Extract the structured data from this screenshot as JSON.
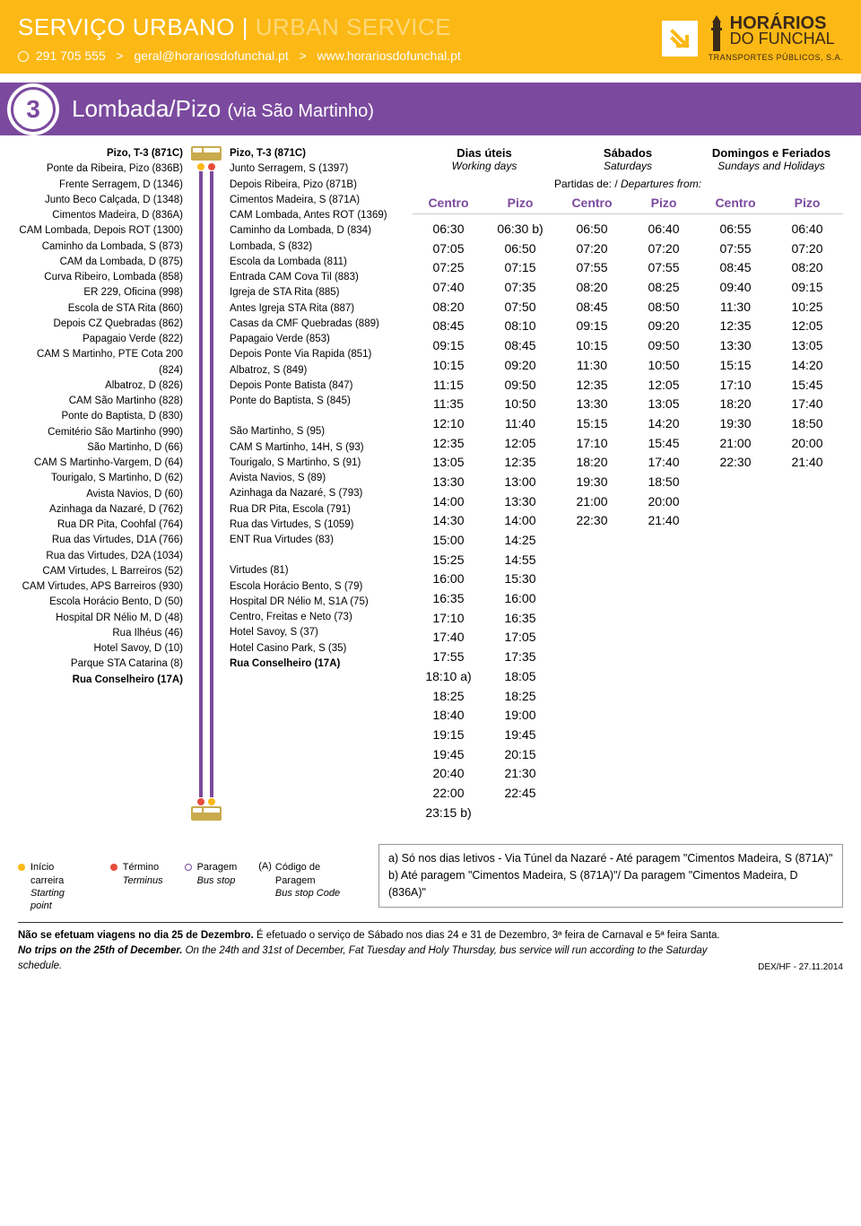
{
  "header": {
    "service_bold": "SERVIÇO URBANO",
    "service_light": "URBAN SERVICE",
    "phone": "291 705 555",
    "email": "geral@horariosdofunchal.pt",
    "url": "www.horariosdofunchal.pt",
    "logo_line1": "HORÁRIOS",
    "logo_line2": "DO FUNCHAL",
    "logo_tag": "TRANSPORTES PÚBLICOS, S.A."
  },
  "route": {
    "number": "3",
    "name": "Lombada/Pizo",
    "via": "(via São Martinho)"
  },
  "stops_left": [
    "Pizo, T-3 (871C)",
    "Ponte da Ribeira, Pizo (836B)",
    "Frente Serragem, D (1346)",
    "Junto Beco Calçada, D (1348)",
    "Cimentos Madeira, D (836A)",
    "CAM Lombada, Depois ROT (1300)",
    "Caminho da Lombada, S (873)",
    "CAM da Lombada, D (875)",
    "Curva Ribeiro, Lombada (858)",
    "ER 229, Oficina (998)",
    "Escola de STA Rita (860)",
    "Depois CZ Quebradas (862)",
    "Papagaio Verde (822)",
    "CAM S Martinho, PTE Cota 200 (824)",
    "Albatroz, D (826)",
    "CAM São Martinho (828)",
    "Ponte do Baptista, D (830)",
    "Cemitério São Martinho (990)",
    "São Martinho, D (66)",
    "CAM S Martinho-Vargem, D (64)",
    "Tourigalo, S Martinho, D (62)",
    "Avista Navios, D (60)",
    "Azinhaga da Nazaré, D (762)",
    "Rua DR Pita, Coohfal (764)",
    "Rua das Virtudes, D1A (766)",
    "Rua das Virtudes, D2A (1034)",
    "CAM Virtudes, L Barreiros (52)",
    "CAM Virtudes, APS Barreiros (930)",
    "Escola Horácio Bento, D (50)",
    "Hospital DR Nélio M, D (48)",
    "Rua Ilhéus (46)",
    "Hotel Savoy, D (10)",
    "Parque STA Catarina (8)",
    "Rua Conselheiro (17A)"
  ],
  "stops_right": [
    "Pizo, T-3 (871C)",
    "Junto Serragem, S (1397)",
    "Depois Ribeira, Pizo (871B)",
    "Cimentos Madeira, S (871A)",
    "CAM Lombada, Antes ROT (1369)",
    "Caminho da Lombada, D (834)",
    "Lombada, S (832)",
    "Escola da Lombada (811)",
    "Entrada CAM Cova Til (883)",
    "Igreja de STA Rita (885)",
    "Antes Igreja STA Rita (887)",
    "Casas da CMF Quebradas (889)",
    "Papagaio Verde (853)",
    "Depois Ponte Via Rapida (851)",
    "Albatroz, S (849)",
    "Depois Ponte Batista (847)",
    "Ponte do Baptista, S (845)",
    "",
    "São Martinho, S (95)",
    "CAM S Martinho, 14H, S (93)",
    "Tourigalo, S Martinho, S (91)",
    "Avista Navios, S (89)",
    "Azinhaga da Nazaré, S (793)",
    "Rua DR Pita, Escola (791)",
    "Rua das Virtudes, S (1059)",
    "ENT Rua Virtudes (83)",
    "",
    "Virtudes (81)",
    "Escola Horácio Bento, S (79)",
    "Hospital DR Nélio M, S1A (75)",
    "Centro, Freitas e Neto (73)",
    "Hotel Savoy, S (37)",
    "Hotel Casino Park, S (35)",
    "Rua Conselheiro (17A)"
  ],
  "timetable": {
    "headers": [
      {
        "title": "Dias úteis",
        "sub": "Working days"
      },
      {
        "title": "Sábados",
        "sub": "Saturdays"
      },
      {
        "title": "Domingos e Feriados",
        "sub": "Sundays and Holidays"
      }
    ],
    "departures_label": "Partidas de: /",
    "departures_label_it": "Departures from:",
    "subheaders": [
      "Centro",
      "Pizo",
      "Centro",
      "Pizo",
      "Centro",
      "Pizo"
    ],
    "cols": [
      [
        "06:30",
        "07:05",
        "07:25",
        "07:40",
        "08:20",
        "08:45",
        "09:15",
        "10:15",
        "11:15",
        "11:35",
        "12:10",
        "12:35",
        "13:05",
        "13:30",
        "14:00",
        "14:30",
        "15:00",
        "15:25",
        "16:00",
        "16:35",
        "17:10",
        "17:40",
        "17:55",
        "18:10 a)",
        "18:25",
        "18:40",
        "19:15",
        "19:45",
        "20:40",
        "22:00",
        "23:15 b)"
      ],
      [
        "06:30 b)",
        "06:50",
        "07:15",
        "07:35",
        "07:50",
        "08:10",
        "08:45",
        "09:20",
        "09:50",
        "10:50",
        "11:40",
        "12:05",
        "12:35",
        "13:00",
        "13:30",
        "14:00",
        "14:25",
        "14:55",
        "15:30",
        "16:00",
        "16:35",
        "17:05",
        "17:35",
        "18:05",
        "18:25",
        "19:00",
        "19:45",
        "20:15",
        "21:30",
        "22:45"
      ],
      [
        "06:50",
        "07:20",
        "07:55",
        "08:20",
        "08:45",
        "09:15",
        "10:15",
        "11:30",
        "12:35",
        "13:30",
        "15:15",
        "17:10",
        "18:20",
        "19:30",
        "21:00",
        "22:30"
      ],
      [
        "06:40",
        "07:20",
        "07:55",
        "08:25",
        "08:50",
        "09:20",
        "09:50",
        "10:50",
        "12:05",
        "13:05",
        "14:20",
        "15:45",
        "17:40",
        "18:50",
        "20:00",
        "21:40"
      ],
      [
        "06:55",
        "07:55",
        "08:45",
        "09:40",
        "11:30",
        "12:35",
        "13:30",
        "15:15",
        "17:10",
        "18:20",
        "19:30",
        "21:00",
        "22:30"
      ],
      [
        "06:40",
        "07:20",
        "08:20",
        "09:15",
        "10:25",
        "12:05",
        "13:05",
        "14:20",
        "15:45",
        "17:40",
        "18:50",
        "20:00",
        "21:40"
      ]
    ]
  },
  "legend": {
    "start": "Início carreira",
    "start_it": "Starting point",
    "end": "Término",
    "end_it": "Terminus",
    "stop": "Paragem",
    "stop_it": "Bus stop",
    "code_sym": "(A)",
    "code": "Código de Paragem",
    "code_it": "Bus stop Code"
  },
  "notes": {
    "a": "a) Só nos dias letivos - Via Túnel da Nazaré - Até paragem \"Cimentos Madeira, S (871A)\"",
    "b": "b) Até paragem \"Cimentos Madeira, S (871A)\"/ Da paragem \"Cimentos Madeira, D (836A)\""
  },
  "footer": {
    "pt_bold": "Não se efetuam viagens no dia 25 de Dezembro.",
    "pt_rest": " É efetuado o serviço de Sábado nos dias 24 e 31 de Dezembro, 3ª feira de Carnaval e 5ª feira Santa.",
    "en_bold": "No trips on the 25th of December.",
    "en_rest": " On the 24th and 31st of December, Fat Tuesday and Holy Thursday, bus service will run according to the Saturday schedule.",
    "ref": "DEX/HF - 27.11.2014"
  },
  "colors": {
    "brand": "#fcb814",
    "route": "#7b4a9e"
  }
}
